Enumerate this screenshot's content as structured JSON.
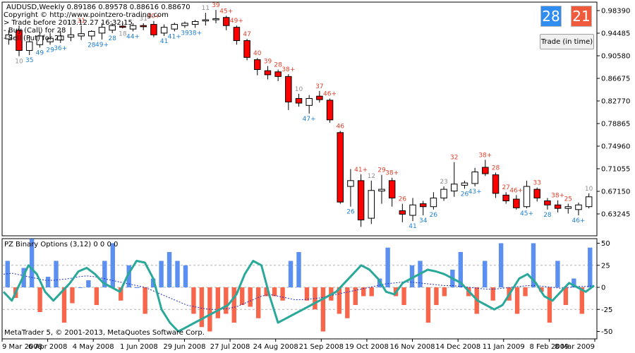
{
  "header": {
    "symbol_line": "AUDUSD,Weekly  0.89186 0.89578 0.88616 0.88670",
    "copyright": "Copyright © http://www.pointzero-trading.com",
    "trade_before": "> Trade before 2013.12.27 16:32:15",
    "buy_line": "- Buy (Call) for 28",
    "sell_line": "- Sell (Put) for 21"
  },
  "buttons": {
    "call_count": "28",
    "put_count": "21",
    "trade_label": "Trade (in time)",
    "call_color": "#2f8cf0",
    "put_color": "#f05a3c"
  },
  "indicator": {
    "title": "PZ Binary Options (3,12) 0 0 0 0",
    "footer": "MetaTrader 5, © 2001-2013, MetaQuotes Software Corp."
  },
  "colors": {
    "bear_body": "#ff0000",
    "bull_body": "#ffffff",
    "label_red": "#e0402a",
    "label_blue": "#1f7fd0",
    "label_gray": "#909090",
    "hist_pos": "#5b8ff0",
    "hist_neg": "#f7664a",
    "osc_line": "#2aa89a",
    "dash_line": "#2030c0"
  },
  "chart_data": [
    {
      "type": "candlestick",
      "title": "AUDUSD,Weekly",
      "y_ticks": [
        "0.98390",
        "0.94485",
        "0.90580",
        "0.86675",
        "0.82770",
        "0.78865",
        "0.74960",
        "0.71055",
        "0.67150",
        "0.63245"
      ],
      "ylim": [
        0.612,
        0.995
      ],
      "x_ticks": [
        "9 Mar 2008",
        "6 Apr 2008",
        "4 May 2008",
        "1 Jun 2008",
        "29 Jun 2008",
        "27 Jul 2008",
        "24 Aug 2008",
        "21 Sep 2008",
        "19 Oct 2008",
        "16 Nov 2008",
        "14 Dec 2008",
        "11 Jan 2009",
        "8 Feb 2009",
        "8 Mar 2009"
      ],
      "candles": [
        {
          "o": 0.935,
          "h": 0.95,
          "l": 0.925,
          "c": 0.942,
          "lab": "",
          "lc": "gray",
          "pos": "b"
        },
        {
          "o": 0.95,
          "h": 0.958,
          "l": 0.905,
          "c": 0.915,
          "lab": "10",
          "lc": "gray",
          "pos": "b"
        },
        {
          "o": 0.915,
          "h": 0.94,
          "l": 0.907,
          "c": 0.93,
          "lab": "35",
          "lc": "blue",
          "pos": "b"
        },
        {
          "o": 0.925,
          "h": 0.947,
          "l": 0.92,
          "c": 0.94,
          "lab": "49",
          "lc": "blue",
          "pos": "b"
        },
        {
          "o": 0.93,
          "h": 0.945,
          "l": 0.925,
          "c": 0.936,
          "lab": "29",
          "lc": "blue",
          "pos": "b"
        },
        {
          "o": 0.933,
          "h": 0.949,
          "l": 0.928,
          "c": 0.94,
          "lab": "36+",
          "lc": "blue",
          "pos": "b"
        },
        {
          "o": 0.938,
          "h": 0.955,
          "l": 0.931,
          "c": 0.942,
          "lab": "10",
          "lc": "gray",
          "pos": "t"
        },
        {
          "o": 0.94,
          "h": 0.958,
          "l": 0.933,
          "c": 0.944,
          "lab": "31",
          "lc": "red",
          "pos": "t"
        },
        {
          "o": 0.94,
          "h": 0.95,
          "l": 0.933,
          "c": 0.948,
          "lab": "28",
          "lc": "blue",
          "pos": "b"
        },
        {
          "o": 0.945,
          "h": 0.962,
          "l": 0.934,
          "c": 0.955,
          "lab": "49+",
          "lc": "blue",
          "pos": "b"
        },
        {
          "o": 0.95,
          "h": 0.962,
          "l": 0.945,
          "c": 0.958,
          "lab": "28",
          "lc": "blue",
          "pos": "b"
        },
        {
          "o": 0.957,
          "h": 0.964,
          "l": 0.953,
          "c": 0.955,
          "lab": "18",
          "lc": "gray",
          "pos": "b"
        },
        {
          "o": 0.952,
          "h": 0.962,
          "l": 0.948,
          "c": 0.958,
          "lab": "44+",
          "lc": "blue",
          "pos": "b"
        },
        {
          "o": 0.958,
          "h": 0.962,
          "l": 0.95,
          "c": 0.956,
          "lab": "31",
          "lc": "gray",
          "pos": "t"
        },
        {
          "o": 0.96,
          "h": 0.966,
          "l": 0.938,
          "c": 0.942,
          "lab": "40+",
          "lc": "red",
          "pos": "t"
        },
        {
          "o": 0.945,
          "h": 0.96,
          "l": 0.94,
          "c": 0.955,
          "lab": "41",
          "lc": "blue",
          "pos": "b"
        },
        {
          "o": 0.952,
          "h": 0.963,
          "l": 0.948,
          "c": 0.96,
          "lab": "41+",
          "lc": "blue",
          "pos": "b"
        },
        {
          "o": 0.958,
          "h": 0.965,
          "l": 0.954,
          "c": 0.962,
          "lab": "39",
          "lc": "blue",
          "pos": "b"
        },
        {
          "o": 0.96,
          "h": 0.968,
          "l": 0.954,
          "c": 0.965,
          "lab": "38+",
          "lc": "blue",
          "pos": "b"
        },
        {
          "o": 0.966,
          "h": 0.98,
          "l": 0.958,
          "c": 0.968,
          "lab": "11",
          "lc": "gray",
          "pos": "t"
        },
        {
          "o": 0.968,
          "h": 0.985,
          "l": 0.962,
          "c": 0.97,
          "lab": "39",
          "lc": "red",
          "pos": "t"
        },
        {
          "o": 0.972,
          "h": 0.975,
          "l": 0.95,
          "c": 0.958,
          "lab": "45+",
          "lc": "red",
          "pos": "t"
        },
        {
          "o": 0.955,
          "h": 0.958,
          "l": 0.925,
          "c": 0.932,
          "lab": "49+",
          "lc": "red",
          "pos": "t"
        },
        {
          "o": 0.932,
          "h": 0.935,
          "l": 0.898,
          "c": 0.903,
          "lab": "47",
          "lc": "red",
          "pos": "t"
        },
        {
          "o": 0.899,
          "h": 0.902,
          "l": 0.872,
          "c": 0.882,
          "lab": "40",
          "lc": "red",
          "pos": "t"
        },
        {
          "o": 0.88,
          "h": 0.888,
          "l": 0.865,
          "c": 0.873,
          "lab": "39",
          "lc": "red",
          "pos": "t"
        },
        {
          "o": 0.878,
          "h": 0.882,
          "l": 0.862,
          "c": 0.87,
          "lab": "28",
          "lc": "red",
          "pos": "t"
        },
        {
          "o": 0.87,
          "h": 0.874,
          "l": 0.812,
          "c": 0.826,
          "lab": "38+",
          "lc": "red",
          "pos": "t"
        },
        {
          "o": 0.832,
          "h": 0.84,
          "l": 0.818,
          "c": 0.824,
          "lab": "10",
          "lc": "gray",
          "pos": "t"
        },
        {
          "o": 0.82,
          "h": 0.838,
          "l": 0.806,
          "c": 0.832,
          "lab": "47+",
          "lc": "blue",
          "pos": "b"
        },
        {
          "o": 0.836,
          "h": 0.845,
          "l": 0.825,
          "c": 0.83,
          "lab": "37",
          "lc": "red",
          "pos": "t"
        },
        {
          "o": 0.829,
          "h": 0.832,
          "l": 0.79,
          "c": 0.795,
          "lab": "46+",
          "lc": "red",
          "pos": "t"
        },
        {
          "o": 0.773,
          "h": 0.776,
          "l": 0.65,
          "c": 0.653,
          "lab": "46",
          "lc": "red",
          "pos": "t"
        },
        {
          "o": 0.68,
          "h": 0.71,
          "l": 0.645,
          "c": 0.69,
          "lab": "26",
          "lc": "blue",
          "pos": "b"
        },
        {
          "o": 0.69,
          "h": 0.701,
          "l": 0.61,
          "c": 0.622,
          "lab": "41+",
          "lc": "red",
          "pos": "t"
        },
        {
          "o": 0.625,
          "h": 0.69,
          "l": 0.615,
          "c": 0.673,
          "lab": "12",
          "lc": "gray",
          "pos": "t"
        },
        {
          "o": 0.672,
          "h": 0.7,
          "l": 0.65,
          "c": 0.675,
          "lab": "29",
          "lc": "red",
          "pos": "t"
        },
        {
          "o": 0.69,
          "h": 0.695,
          "l": 0.645,
          "c": 0.66,
          "lab": "38+",
          "lc": "red",
          "pos": "t"
        },
        {
          "o": 0.638,
          "h": 0.65,
          "l": 0.618,
          "c": 0.632,
          "lab": "26",
          "lc": "red",
          "pos": "t"
        },
        {
          "o": 0.63,
          "h": 0.66,
          "l": 0.62,
          "c": 0.648,
          "lab": "41",
          "lc": "blue",
          "pos": "b"
        },
        {
          "o": 0.65,
          "h": 0.655,
          "l": 0.63,
          "c": 0.645,
          "lab": "34",
          "lc": "blue",
          "pos": "b"
        },
        {
          "o": 0.645,
          "h": 0.67,
          "l": 0.64,
          "c": 0.66,
          "lab": "26",
          "lc": "blue",
          "pos": "b"
        },
        {
          "o": 0.66,
          "h": 0.68,
          "l": 0.655,
          "c": 0.675,
          "lab": "23",
          "lc": "gray",
          "pos": "t"
        },
        {
          "o": 0.672,
          "h": 0.722,
          "l": 0.662,
          "c": 0.684,
          "lab": "32",
          "lc": "red",
          "pos": "t"
        },
        {
          "o": 0.682,
          "h": 0.69,
          "l": 0.676,
          "c": 0.686,
          "lab": "26",
          "lc": "blue",
          "pos": "b"
        },
        {
          "o": 0.685,
          "h": 0.712,
          "l": 0.68,
          "c": 0.705,
          "lab": "43+",
          "lc": "blue",
          "pos": "b"
        },
        {
          "o": 0.713,
          "h": 0.726,
          "l": 0.698,
          "c": 0.702,
          "lab": "38+",
          "lc": "red",
          "pos": "t"
        },
        {
          "o": 0.7,
          "h": 0.704,
          "l": 0.66,
          "c": 0.668,
          "lab": "28",
          "lc": "red",
          "pos": "t"
        },
        {
          "o": 0.665,
          "h": 0.67,
          "l": 0.65,
          "c": 0.655,
          "lab": "27",
          "lc": "red",
          "pos": "t"
        },
        {
          "o": 0.658,
          "h": 0.665,
          "l": 0.64,
          "c": 0.643,
          "lab": "46+",
          "lc": "red",
          "pos": "t"
        },
        {
          "o": 0.645,
          "h": 0.69,
          "l": 0.642,
          "c": 0.68,
          "lab": "45+",
          "lc": "blue",
          "pos": "b"
        },
        {
          "o": 0.675,
          "h": 0.678,
          "l": 0.654,
          "c": 0.66,
          "lab": "33",
          "lc": "red",
          "pos": "t"
        },
        {
          "o": 0.655,
          "h": 0.66,
          "l": 0.64,
          "c": 0.648,
          "lab": "28",
          "lc": "blue",
          "pos": "b"
        },
        {
          "o": 0.648,
          "h": 0.656,
          "l": 0.635,
          "c": 0.642,
          "lab": "38+",
          "lc": "red",
          "pos": "t"
        },
        {
          "o": 0.642,
          "h": 0.65,
          "l": 0.633,
          "c": 0.645,
          "lab": "25",
          "lc": "red",
          "pos": "t"
        },
        {
          "o": 0.64,
          "h": 0.652,
          "l": 0.63,
          "c": 0.648,
          "lab": "46+",
          "lc": "blue",
          "pos": "b"
        },
        {
          "o": 0.645,
          "h": 0.668,
          "l": 0.642,
          "c": 0.662,
          "lab": "10",
          "lc": "gray",
          "pos": "t"
        }
      ]
    },
    {
      "type": "bar+line",
      "title": "PZ Binary Options (3,12) 0 0 0 0",
      "y_ticks": [
        "50",
        "25",
        "0",
        "-25",
        "-50"
      ],
      "ylim": [
        -52,
        52
      ],
      "histogram": [
        30,
        -12,
        22,
        55,
        -28,
        12,
        30,
        -40,
        -18,
        0,
        8,
        -20,
        30,
        50,
        -15,
        25,
        0,
        -30,
        10,
        30,
        40,
        30,
        25,
        -30,
        -45,
        -50,
        -35,
        -30,
        -40,
        -20,
        -22,
        -35,
        -10,
        -10,
        -15,
        30,
        40,
        -15,
        -25,
        -50,
        -15,
        -30,
        -35,
        -20,
        -10,
        -10,
        10,
        45,
        -10,
        -20,
        25,
        30,
        -40,
        -20,
        -10,
        20,
        40,
        -10,
        -30,
        30,
        -15,
        50,
        -15,
        -30,
        -10,
        50,
        -5,
        -40,
        30,
        -20,
        10,
        -30,
        45
      ],
      "line": [
        -5,
        -15,
        5,
        25,
        15,
        -5,
        -15,
        -5,
        5,
        18,
        22,
        15,
        5,
        0,
        -5,
        15,
        30,
        28,
        10,
        -25,
        -40,
        -50,
        -45,
        -40,
        -35,
        -30,
        -25,
        -20,
        -8,
        15,
        30,
        25,
        -10,
        -40,
        -35,
        -30,
        -25,
        -20,
        -15,
        -10,
        -5,
        5,
        15,
        25,
        20,
        10,
        -5,
        -8,
        5,
        10,
        15,
        20,
        18,
        15,
        10,
        5,
        -5,
        -15,
        -20,
        -25,
        -20,
        -5,
        10,
        15,
        5,
        -10,
        -15,
        -5,
        5,
        0,
        -5,
        2
      ],
      "dashed": [
        15,
        16,
        14,
        12,
        10,
        8,
        8,
        9,
        10,
        12,
        13,
        12,
        10,
        8,
        6,
        4,
        2,
        0,
        -4,
        -8,
        -12,
        -16,
        -20,
        -22,
        -24,
        -25,
        -25,
        -24,
        -22,
        -18,
        -14,
        -10,
        -8,
        -10,
        -12,
        -14,
        -14,
        -13,
        -12,
        -10,
        -8,
        -6,
        -4,
        -2,
        0,
        2,
        4,
        5,
        6,
        6,
        5,
        4,
        3,
        2,
        2,
        1,
        0,
        -1,
        -2,
        -2,
        -1,
        0,
        1,
        2,
        2,
        1,
        0,
        -1,
        0,
        1,
        1,
        2
      ]
    }
  ]
}
